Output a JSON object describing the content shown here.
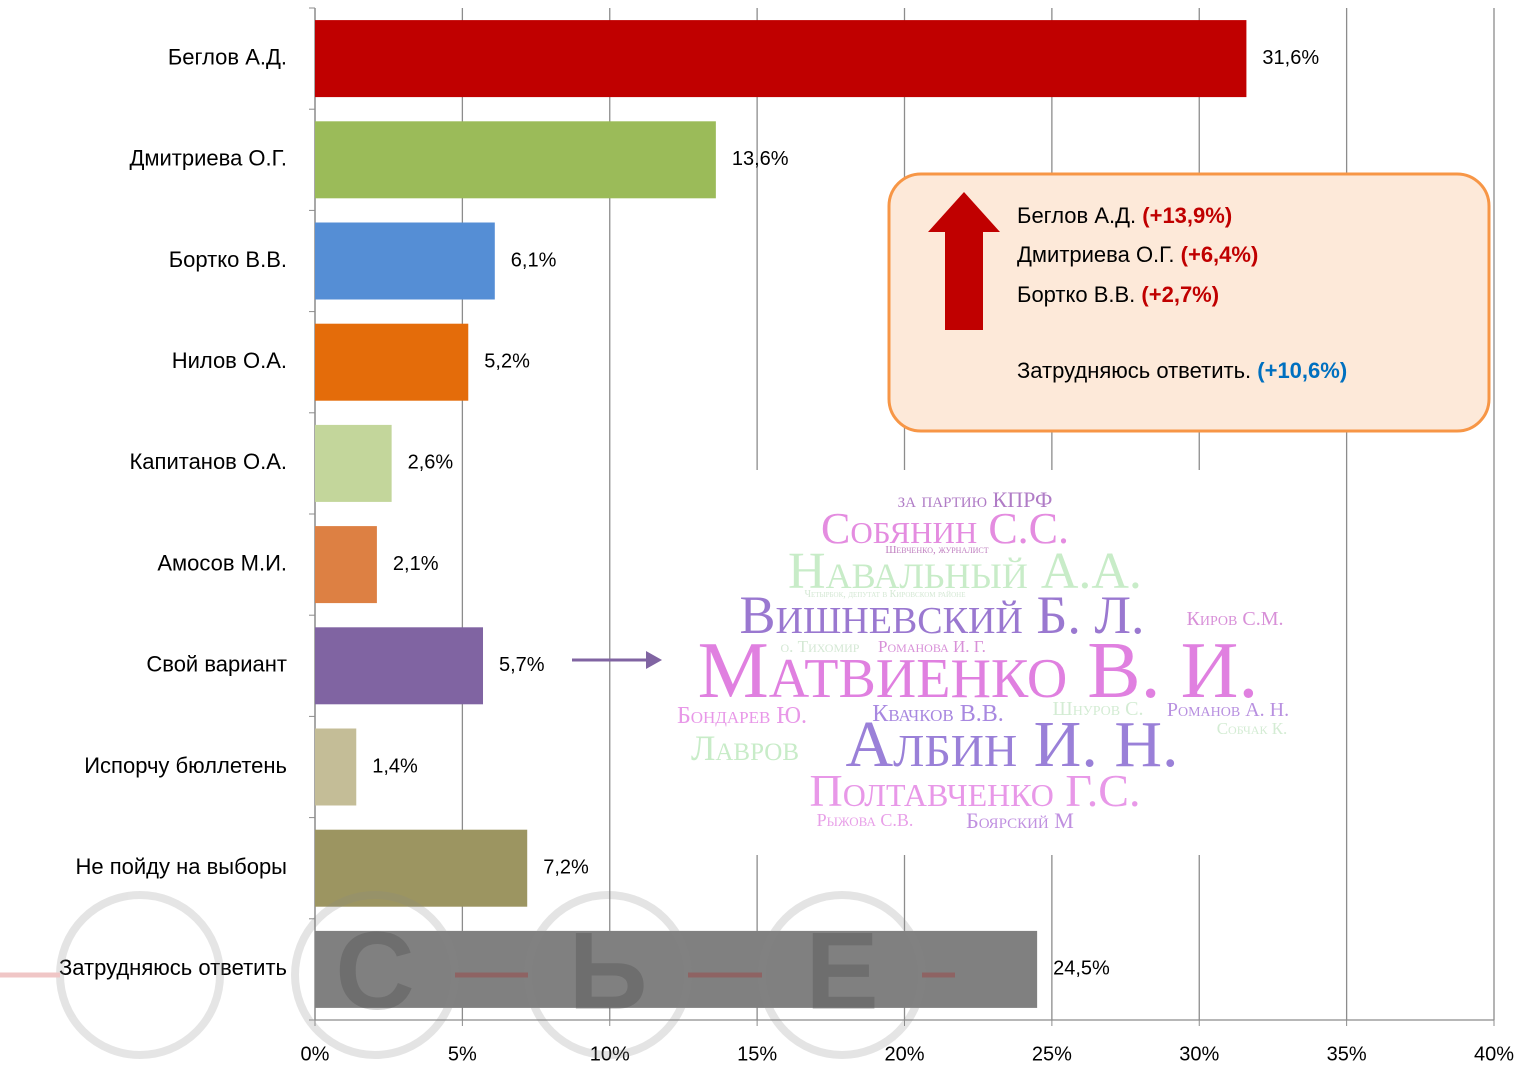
{
  "chart_data": {
    "type": "bar",
    "orientation": "horizontal",
    "categories": [
      "Беглов А.Д.",
      "Дмитриева О.Г.",
      "Бортко В.В.",
      "Нилов О.А.",
      "Капитанов О.А.",
      "Амосов М.И.",
      "Свой вариант",
      "Испорчу бюллетень",
      "Не пойду на выборы",
      "Затрудняюсь ответить"
    ],
    "values": [
      31.6,
      13.6,
      6.1,
      5.2,
      2.6,
      2.1,
      5.7,
      1.4,
      7.2,
      24.5
    ],
    "value_labels": [
      "31,6%",
      "13,6%",
      "6,1%",
      "5,2%",
      "2,6%",
      "2,1%",
      "5,7%",
      "1,4%",
      "7,2%",
      "24,5%"
    ],
    "colors": [
      "#c00000",
      "#9bbb59",
      "#558ed5",
      "#e46c0a",
      "#c3d69b",
      "#dd8043",
      "#8064a2",
      "#c4bd97",
      "#9c9561",
      "#808080"
    ],
    "xlim": [
      0,
      40
    ],
    "xticks": [
      {
        "value": 0,
        "label": "0%"
      },
      {
        "value": 5,
        "label": "5%"
      },
      {
        "value": 10,
        "label": "10%"
      },
      {
        "value": 15,
        "label": "15%"
      },
      {
        "value": 20,
        "label": "20%"
      },
      {
        "value": 25,
        "label": "25%"
      },
      {
        "value": 30,
        "label": "30%"
      },
      {
        "value": 35,
        "label": "35%"
      },
      {
        "value": 40,
        "label": "40%"
      }
    ],
    "grid": true
  },
  "annotation": {
    "lines": [
      {
        "name": "Беглов А.Д.",
        "change": "(+13,9%)"
      },
      {
        "name": "Дмитриева О.Г.",
        "change": "(+6,4%)"
      },
      {
        "name": "Бортко В.В.",
        "change": "(+2,7%)"
      },
      {
        "name": "Затрудняюсь ответить.",
        "change": "(+10,6%)"
      }
    ]
  },
  "word_cloud": [
    "за партию КПРФ",
    "Собянин С.С.",
    "Шевченко, журналист",
    "Навальный А.А.",
    "Четырбок, депутат в Кировском районе",
    "Вишневский Б. Л.",
    "Киров С.М.",
    "о. Тихомир",
    "Романова И. Г.",
    "Матвиенко В. И.",
    "Бондарев Ю.",
    "Квачков В.В.",
    "Шнуров С.",
    "Романов А. Н.",
    "Собчак К.",
    "Лавров",
    "Албин И. Н.",
    "Полтавченко Г.С.",
    "Рыжова С.В.",
    "Боярский М"
  ],
  "watermark": [
    "С",
    "Ь",
    "Е"
  ]
}
